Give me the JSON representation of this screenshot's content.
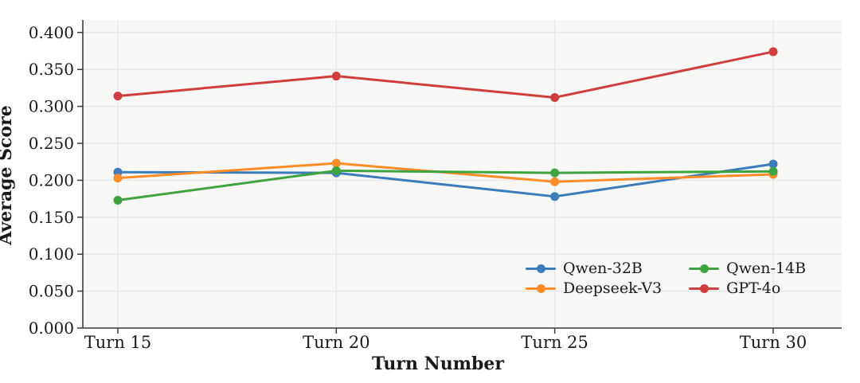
{
  "figure": {
    "background_color": "#ffffff",
    "plot_background_color": "#f7f7f6",
    "grid_color": "#e6e6e6",
    "spine_color": "#3b3b3b",
    "text_color": "#1a1a1a"
  },
  "chart_data": {
    "type": "line",
    "title": "",
    "xlabel": "Turn Number",
    "ylabel": "Average Score",
    "categories": [
      "Turn 15",
      "Turn 20",
      "Turn 25",
      "Turn 30"
    ],
    "series": [
      {
        "name": "Qwen-32B",
        "color": "#3b7cba",
        "values": [
          0.211,
          0.21,
          0.178,
          0.222
        ]
      },
      {
        "name": "Deepseek-V3",
        "color": "#ff8c29",
        "values": [
          0.203,
          0.223,
          0.198,
          0.208
        ]
      },
      {
        "name": "Qwen-14B",
        "color": "#3fa33f",
        "values": [
          0.173,
          0.213,
          0.21,
          0.212
        ]
      },
      {
        "name": "GPT-4o",
        "color": "#cf3e3e",
        "values": [
          0.314,
          0.341,
          0.312,
          0.374
        ]
      }
    ],
    "ylim": [
      0.0,
      0.4
    ],
    "ytick_step": 0.05,
    "ytick_decimals": 3,
    "grid": true,
    "marker": "circle",
    "legend": {
      "ncol": 2,
      "position": "inside lower right",
      "frame": false
    }
  }
}
